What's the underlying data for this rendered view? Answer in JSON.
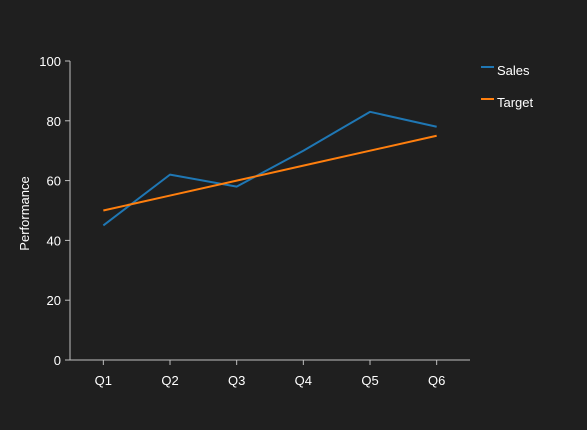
{
  "chart_data": {
    "type": "line",
    "categories": [
      "Q1",
      "Q2",
      "Q3",
      "Q4",
      "Q5",
      "Q6"
    ],
    "series": [
      {
        "name": "Sales",
        "values": [
          45,
          62,
          58,
          70,
          83,
          78
        ],
        "color": "#1f77b4"
      },
      {
        "name": "Target",
        "values": [
          50,
          55,
          60,
          65,
          70,
          75
        ],
        "color": "#ff7f0e"
      }
    ],
    "title": "",
    "xlabel": "",
    "ylabel": "Performance",
    "ylim": [
      0,
      100
    ],
    "yticks": [
      0,
      20,
      40,
      60,
      80,
      100
    ],
    "grid": false,
    "legend_position": "top-right",
    "background_color": "#1f1f1f",
    "text_color": "#ffffff",
    "axis_color": "#bfbfbf"
  }
}
